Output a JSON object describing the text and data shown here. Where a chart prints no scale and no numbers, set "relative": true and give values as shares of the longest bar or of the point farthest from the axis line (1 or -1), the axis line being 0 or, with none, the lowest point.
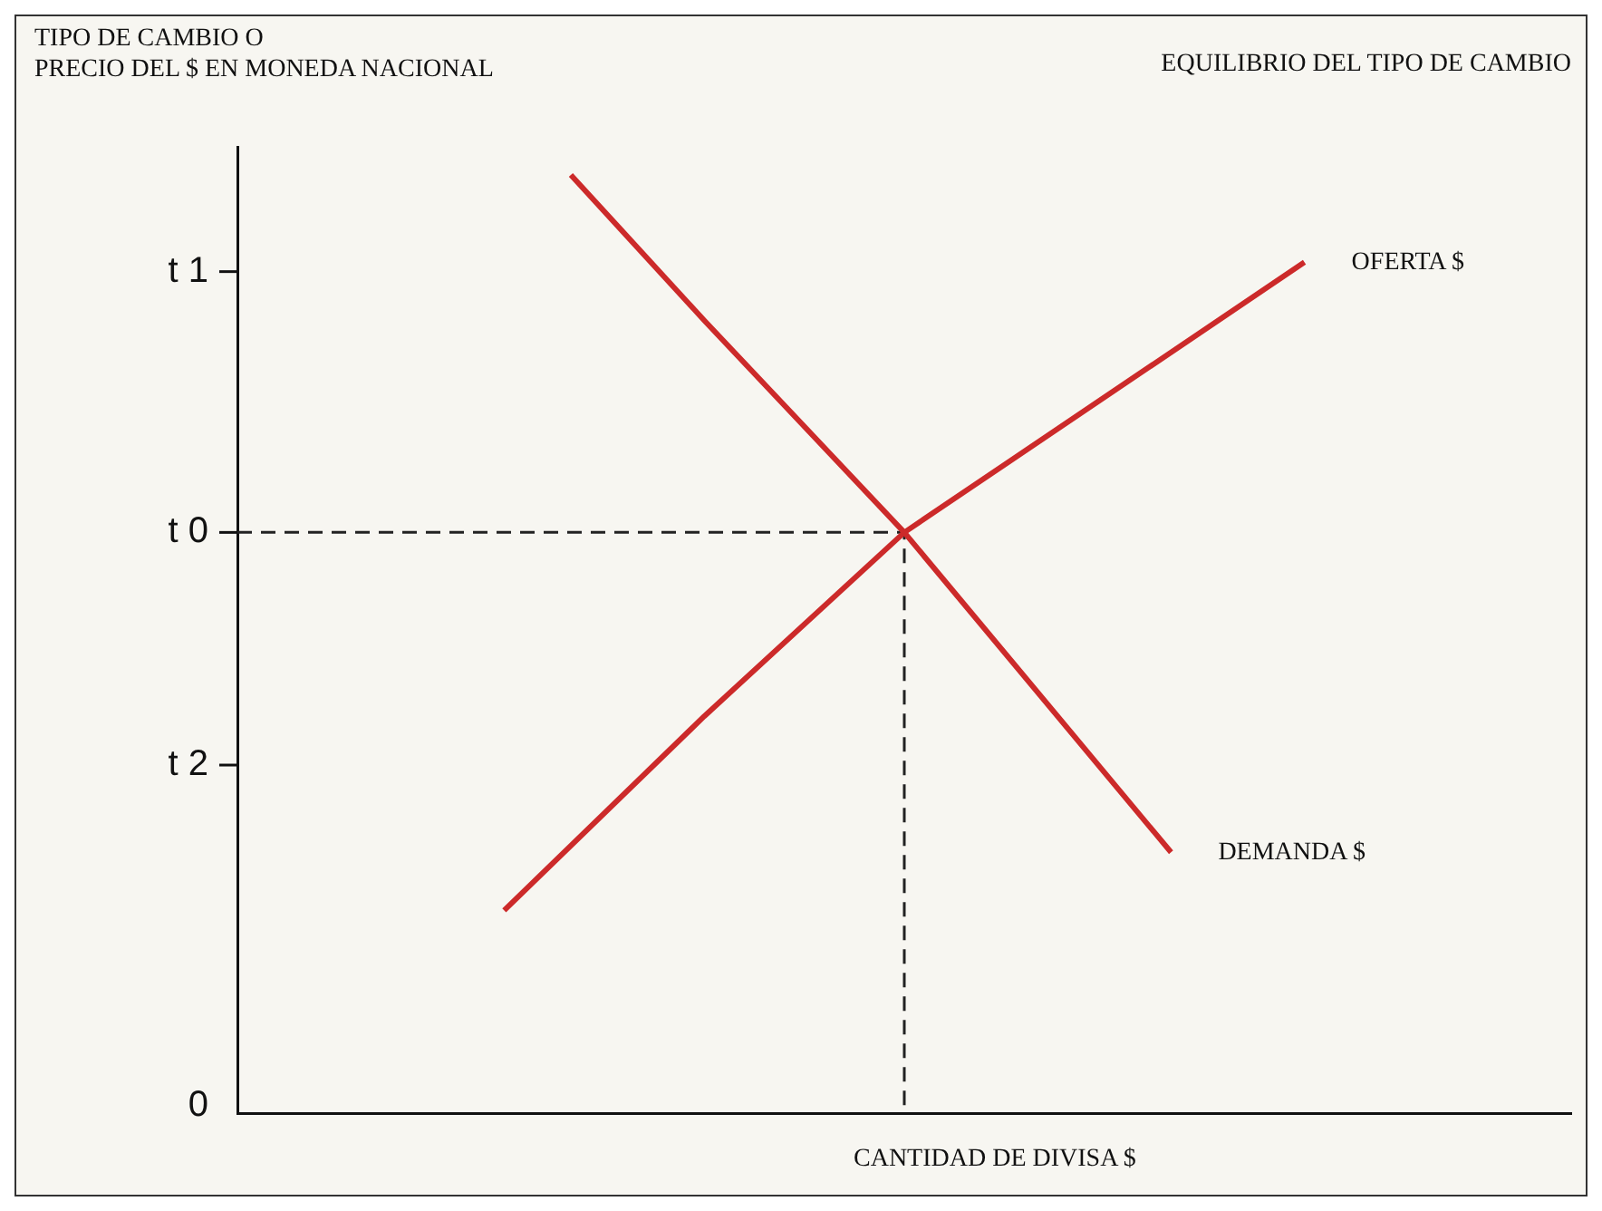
{
  "chart_data": {
    "type": "line",
    "title": "EQUILIBRIO DEL TIPO DE CAMBIO",
    "ylabel": "TIPO DE CAMBIO O\nPRECIO DEL $ EN MONEDA NACIONAL",
    "xlabel": "CANTIDAD DE DIVISA $",
    "categories": [
      null,
      null,
      null,
      null,
      null,
      null,
      null,
      null,
      null,
      null,
      null,
      null,
      null,
      null,
      null,
      null,
      null,
      null,
      null,
      null,
      null
    ],
    "relative": true,
    "annotations": [
      "0"
    ],
    "grid": false,
    "legend": false,
    "marker": "none",
    "line_style": "solid",
    "ref_lines": [
      {
        "axis": "y",
        "value": 0.371,
        "label": "t 2"
      },
      {
        "axis": "y",
        "value": 0.619,
        "label": "t 0",
        "color": "#222222",
        "line_style": "dashed"
      },
      {
        "axis": "y",
        "value": 0.897,
        "label": "t 1"
      }
    ],
    "series": [
      {
        "name": "DEMANDA $",
        "color": "#cc2a2a",
        "values": [
          null,
          null,
          null,
          null,
          null,
          1.0,
          null,
          0.845,
          null,
          null,
          0.619,
          null,
          null,
          null,
          0.278,
          null,
          null,
          null,
          null,
          null,
          null
        ]
      },
      {
        "name": "OFERTA $",
        "color": "#cc2a2a",
        "values": [
          null,
          null,
          null,
          null,
          0.216,
          null,
          null,
          0.423,
          null,
          null,
          0.619,
          null,
          null,
          null,
          null,
          null,
          0.907,
          null,
          null,
          null,
          null
        ]
      }
    ]
  }
}
